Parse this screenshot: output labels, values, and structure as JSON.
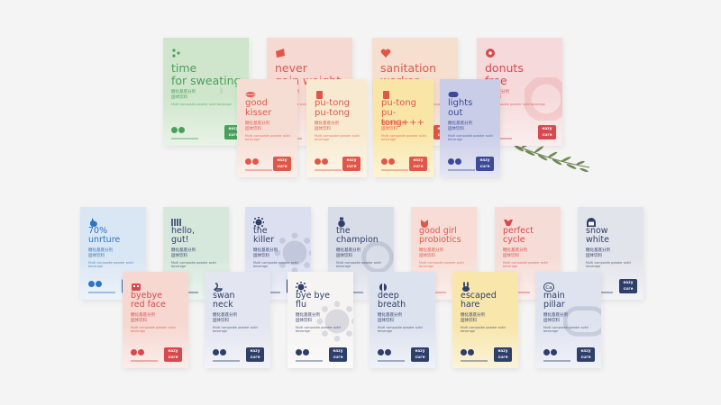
{
  "brand": {
    "logo_text": "eazy\ncure",
    "chinese_line": "糖化基底分剂\n固体饮料",
    "english_line": "Multi composite powder solid beverage"
  },
  "cards": [
    {
      "id": "time-for-sweating",
      "name": "time\nfor sweating",
      "bg": "#cfe6cc",
      "text": "#4aa05a",
      "icon": "sweat-drops-icon",
      "deco": "drops",
      "size": "big"
    },
    {
      "id": "never-gain-weight",
      "name": "never\ngain weight",
      "bg": "#f6d9d3",
      "text": "#e0574a",
      "icon": "scale-icon",
      "deco": "none",
      "size": "big"
    },
    {
      "id": "sanitation-worker",
      "name": "sanitation\nworker",
      "bg": "#f6dfcf",
      "text": "#e0574a",
      "icon": "heart-icon",
      "deco": "none",
      "size": "big"
    },
    {
      "id": "donuts-free",
      "name": "donuts\nfree",
      "bg": "#f6dadb",
      "text": "#d9484e",
      "icon": "donut-icon",
      "deco": "donut",
      "size": "big"
    },
    {
      "id": "good-kisser",
      "name": "good\nkisser",
      "bg": "#f6ddd4",
      "text": "#e0574a",
      "icon": "lips-icon",
      "deco": "none",
      "size": "mid"
    },
    {
      "id": "pu-tong-pu-tong",
      "name": "pu-tong\npu-tong",
      "bg": "#f7ead0",
      "text": "#e0574a",
      "icon": "cup-icon",
      "deco": "none",
      "size": "mid"
    },
    {
      "id": "pu-tong-plus",
      "name": "pu-tong\npu-tong+++",
      "bg": "#f9e6a7",
      "text": "#e0574a",
      "icon": "cup-icon",
      "deco": "none",
      "size": "mid"
    },
    {
      "id": "lights-out",
      "name": "lights\nout",
      "bg": "#c9cde8",
      "text": "#3b4a9a",
      "icon": "sleep-mask-icon",
      "deco": "none",
      "size": "mid"
    },
    {
      "id": "unrture",
      "name": "70%\nunrture",
      "bg": "#d9e6f3",
      "text": "#2f74c0",
      "icon": "stomach-icon",
      "deco": "none",
      "size": "mid"
    },
    {
      "id": "hello-gut",
      "name": "hello,\ngut!",
      "bg": "#d6e8dc",
      "text": "#2e3f6a",
      "icon": "intestine-icon",
      "deco": "none",
      "size": "mid"
    },
    {
      "id": "the-killer",
      "name": "the\nkiller",
      "bg": "#dcdff0",
      "text": "#2e3f6a",
      "icon": "germ-icon",
      "deco": "blob",
      "size": "mid"
    },
    {
      "id": "the-champion",
      "name": "the\nchampion",
      "bg": "#d9dde8",
      "text": "#2e3f6a",
      "icon": "medal-icon",
      "deco": "medal",
      "size": "mid"
    },
    {
      "id": "good-girl-probiotics",
      "name": "good girl\nprobiotics",
      "bg": "#f7ddd6",
      "text": "#e0574a",
      "icon": "flower-icon",
      "deco": "none",
      "size": "mid"
    },
    {
      "id": "perfect-cycle",
      "name": "perfect\ncycle",
      "bg": "#f6dcd6",
      "text": "#d9484e",
      "icon": "uterus-icon",
      "deco": "none",
      "size": "mid"
    },
    {
      "id": "snow-white",
      "name": "snow\nwhite",
      "bg": "#e1e4ea",
      "text": "#2e3f6a",
      "icon": "face-icon",
      "deco": "none",
      "size": "mid"
    },
    {
      "id": "byebye-red-face",
      "name": "byebye\nred face",
      "bg": "#f6d8d1",
      "text": "#d9484e",
      "icon": "mask-icon",
      "deco": "none",
      "size": "mid"
    },
    {
      "id": "swan-neck",
      "name": "swan\nneck",
      "bg": "#e3e6f0",
      "text": "#2e3f6a",
      "icon": "swan-icon",
      "deco": "none",
      "size": "mid"
    },
    {
      "id": "bye-bye-flu",
      "name": "bye bye\nflu",
      "bg": "#f6f4f2",
      "text": "#2e3f6a",
      "icon": "virus-icon",
      "deco": "virus",
      "size": "mid"
    },
    {
      "id": "deep-breath",
      "name": "deep\nbreath",
      "bg": "#dde2ef",
      "text": "#2e3f6a",
      "icon": "lungs-icon",
      "deco": "none",
      "size": "mid"
    },
    {
      "id": "escaped-hare",
      "name": "escaped\nhare",
      "bg": "#f8e6ab",
      "text": "#2e3f6a",
      "icon": "rabbit-icon",
      "deco": "none",
      "size": "mid"
    },
    {
      "id": "main-pillar",
      "name": "main\npillar",
      "bg": "#dfe3ef",
      "text": "#2e3f6a",
      "icon": "ca-icon",
      "deco": "ca",
      "size": "mid"
    }
  ]
}
